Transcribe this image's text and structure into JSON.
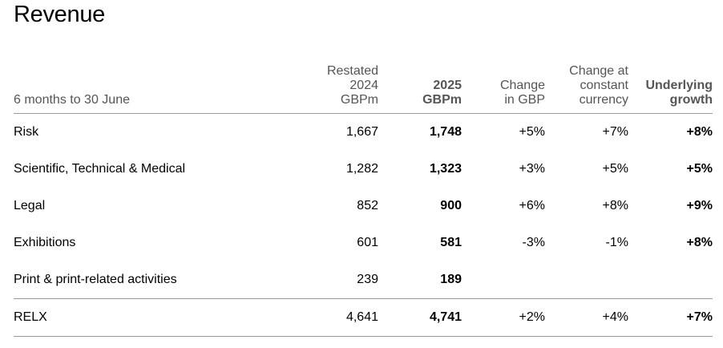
{
  "title": "Revenue",
  "table": {
    "headers": {
      "period": "6 months to 30 June",
      "restated": [
        "Restated",
        "2024",
        "GBPm"
      ],
      "current": [
        "2025",
        "GBPm"
      ],
      "change_gbp": [
        "Change",
        "in GBP"
      ],
      "change_cc": [
        "Change at",
        "constant",
        "currency"
      ],
      "underlying": [
        "Underlying",
        "growth"
      ]
    },
    "rows": [
      {
        "label": "Risk",
        "restated": "1,667",
        "current": "1,748",
        "change_gbp": "+5%",
        "change_cc": "+7%",
        "underlying": "+8%"
      },
      {
        "label": "Scientific, Technical & Medical",
        "restated": "1,282",
        "current": "1,323",
        "change_gbp": "+3%",
        "change_cc": "+5%",
        "underlying": "+5%"
      },
      {
        "label": "Legal",
        "restated": "852",
        "current": "900",
        "change_gbp": "+6%",
        "change_cc": "+8%",
        "underlying": "+9%"
      },
      {
        "label": "Exhibitions",
        "restated": "601",
        "current": "581",
        "change_gbp": "-3%",
        "change_cc": "-1%",
        "underlying": "+8%"
      },
      {
        "label": "Print & print-related activities",
        "restated": "239",
        "current": "189",
        "change_gbp": "",
        "change_cc": "",
        "underlying": ""
      }
    ],
    "total": {
      "label": "RELX",
      "restated": "4,641",
      "current": "4,741",
      "change_gbp": "+2%",
      "change_cc": "+4%",
      "underlying": "+7%"
    }
  }
}
